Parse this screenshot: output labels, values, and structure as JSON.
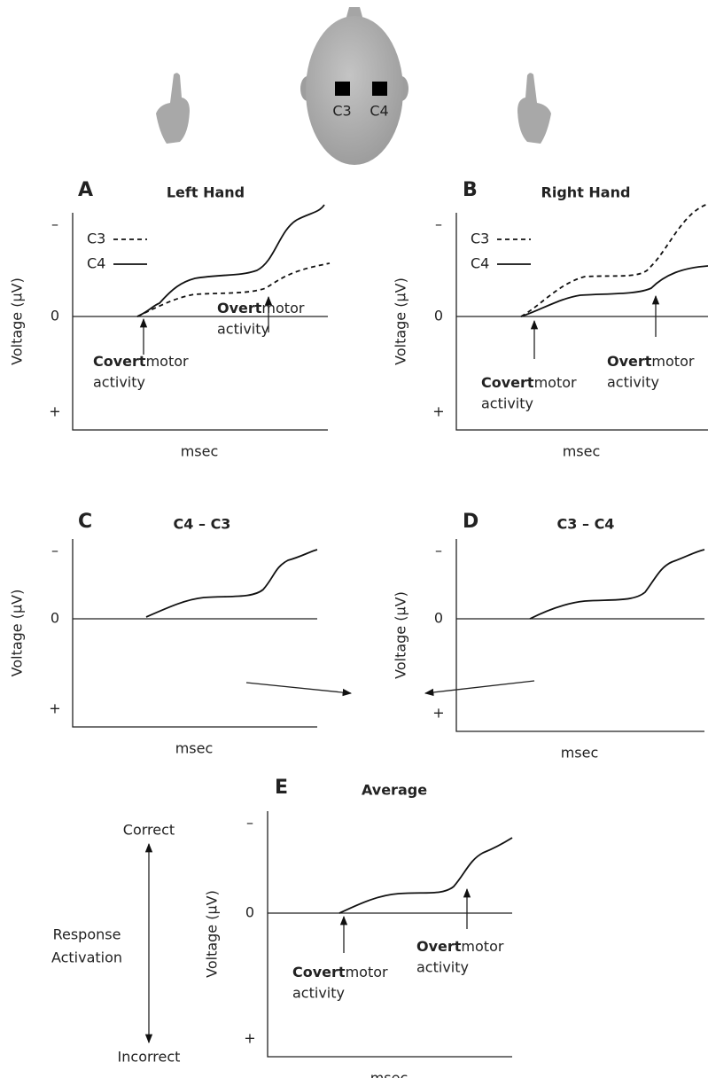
{
  "head": {
    "electrodes": [
      "C3",
      "C4"
    ]
  },
  "panels": [
    {
      "letter": "A",
      "title": "Left Hand",
      "y_label": "Voltage (μV)",
      "x_label": "msec",
      "y_ticks": [
        "–",
        "0",
        "+"
      ],
      "legend": [
        "C3",
        "C4"
      ],
      "annotations": [
        {
          "bold": "Covert",
          "rest": "motor",
          "line2": "activity"
        },
        {
          "bold": "Overt",
          "rest": "motor",
          "line2": "activity"
        }
      ]
    },
    {
      "letter": "B",
      "title": "Right Hand",
      "y_label": "Voltage (μV)",
      "x_label": "msec",
      "y_ticks": [
        "–",
        "0",
        "+"
      ],
      "legend": [
        "C3",
        "C4"
      ],
      "annotations": [
        {
          "bold": "Covert",
          "rest": "motor",
          "line2": "activity"
        },
        {
          "bold": "Overt",
          "rest": "motor",
          "line2": "activity"
        }
      ]
    },
    {
      "letter": "C",
      "title": "C4 – C3",
      "y_label": "Voltage (μV)",
      "x_label": "msec",
      "y_ticks": [
        "–",
        "0",
        "+"
      ]
    },
    {
      "letter": "D",
      "title": "C3 – C4",
      "y_label": "Voltage (μV)",
      "x_label": "msec",
      "y_ticks": [
        "–",
        "0",
        "+"
      ]
    },
    {
      "letter": "E",
      "title": "Average",
      "y_label": "Voltage (μV)",
      "x_label": "msec",
      "y_ticks": [
        "–",
        "0",
        "+"
      ],
      "annotations": [
        {
          "bold": "Covert",
          "rest": "motor",
          "line2": "activity"
        },
        {
          "bold": "Overt",
          "rest": "motor",
          "line2": "activity"
        }
      ]
    }
  ],
  "response_scale": {
    "top": "Correct",
    "label": [
      "Response",
      "Activation"
    ],
    "bottom": "Incorrect"
  }
}
